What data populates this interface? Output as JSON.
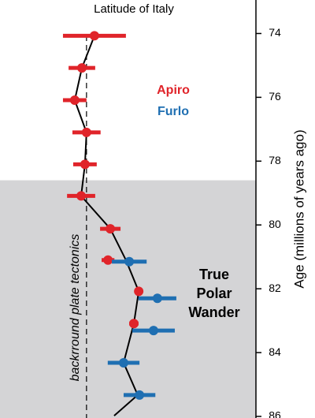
{
  "chart_data": {
    "type": "errorbar-scatter",
    "title": "Latitude of Italy",
    "y_label": "Age (millions of years ago)",
    "annotations": [
      "backrround plate tectonics",
      "True",
      "Polar",
      "Wander"
    ],
    "xlim": [
      0,
      100
    ],
    "ylim": [
      72.95,
      86.05
    ],
    "y_inverted": true,
    "yticks": [
      74,
      76,
      78,
      80,
      82,
      84,
      86
    ],
    "shaded_from": 78.6,
    "shade_color": "#d4d4d6",
    "reference_x": 33.8,
    "series": [
      {
        "name": "Apiro",
        "color": "#e0242a",
        "x": [
          36.9,
          32,
          29.2,
          33.8,
          33.2,
          31.7,
          43.1,
          42.2,
          54.2,
          52.3
        ],
        "values": [
          74.07,
          75.08,
          76.09,
          77.1,
          78.1,
          79.09,
          80.12,
          81.1,
          82.08,
          83.09
        ],
        "x_err": [
          12.3,
          5.2,
          4.6,
          5.5,
          4.6,
          5.5,
          4,
          2.5,
          1.5,
          1.8
        ]
      },
      {
        "name": "Furlo",
        "color": "#1f6fb2",
        "x": [
          50.5,
          61.5,
          60,
          48.3,
          54.5
        ],
        "values": [
          81.15,
          82.3,
          83.31,
          84.32,
          85.33
        ],
        "x_err": [
          6.8,
          7.4,
          8.3,
          6.2,
          6.2
        ]
      }
    ],
    "trend": {
      "color": "#000000",
      "x": [
        36.9,
        32,
        29.2,
        33.8,
        33.2,
        31.7,
        43.1,
        49.2,
        54.2,
        52.3,
        48.3,
        53.8,
        44.6
      ],
      "values": [
        74.07,
        75.08,
        76.09,
        77.1,
        78.1,
        79.09,
        80.12,
        81.1,
        82.08,
        83.09,
        84.32,
        85.33,
        85.98
      ]
    }
  }
}
